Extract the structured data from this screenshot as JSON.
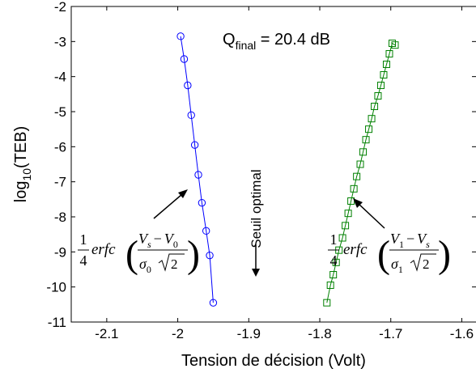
{
  "chart_data": {
    "type": "scatter",
    "title": "",
    "xlabel": "Tension de décision (Volt)",
    "ylabel_main": "log",
    "ylabel_sub": "10",
    "ylabel_paren": "(TEB)",
    "xlim": [
      -2.15,
      -1.58
    ],
    "ylim": [
      -11,
      -2
    ],
    "xticks": [
      -2.1,
      -2.0,
      -1.9,
      -1.8,
      -1.7,
      -1.6
    ],
    "xtick_labels": [
      "-2.1",
      "-2",
      "-1.9",
      "-1.8",
      "-1.7",
      "-1.6"
    ],
    "yticks": [
      -2,
      -3,
      -4,
      -5,
      -6,
      -7,
      -8,
      -9,
      -10,
      -11
    ],
    "ytick_labels": [
      "-2",
      "-3",
      "-4",
      "-5",
      "-6",
      "-7",
      "-8",
      "-9",
      "-10",
      "-11"
    ],
    "grid": false,
    "series": [
      {
        "color": "#0000ff",
        "marker": "circle",
        "x": [
          -1.996,
          -1.991,
          -1.986,
          -1.981,
          -1.976,
          -1.971,
          -1.966,
          -1.96,
          -1.955,
          -1.95
        ],
        "y": [
          -2.85,
          -3.5,
          -4.25,
          -5.1,
          -5.95,
          -6.8,
          -7.6,
          -8.4,
          -9.1,
          -10.45
        ]
      },
      {
        "color": "#008000",
        "marker": "square",
        "x": [
          -1.79,
          -1.785,
          -1.781,
          -1.777,
          -1.773,
          -1.768,
          -1.764,
          -1.76,
          -1.756,
          -1.752,
          -1.748,
          -1.743,
          -1.739,
          -1.735,
          -1.731,
          -1.727,
          -1.723,
          -1.718,
          -1.714,
          -1.71,
          -1.706,
          -1.702,
          -1.698,
          -1.694
        ],
        "y": [
          -10.45,
          -9.95,
          -9.65,
          -9.3,
          -8.95,
          -8.6,
          -8.25,
          -7.9,
          -7.55,
          -7.2,
          -6.85,
          -6.5,
          -6.15,
          -5.8,
          -5.5,
          -5.2,
          -4.85,
          -4.55,
          -4.25,
          -3.95,
          -3.65,
          -3.35,
          -3.05,
          -3.1
        ]
      }
    ],
    "annotations": {
      "qfinal_main": "Q",
      "qfinal_sub": "final",
      "qfinal_value": " = 20.4 dB",
      "seuil": "Seuil optimal",
      "formula_left": {
        "coef_num": "1",
        "coef_den": "4",
        "func": "erfc",
        "num_a": "V",
        "num_a_sub": "s",
        "minus": "−",
        "num_b": "V",
        "num_b_sub": "0",
        "den_sigma": "σ",
        "den_sigma_sub": "0",
        "den_sqrt_arg": "2"
      },
      "formula_right": {
        "coef_num": "1",
        "coef_den": "4",
        "func": "erfc",
        "num_a": "V",
        "num_a_sub": "1",
        "minus": "−",
        "num_b": "V",
        "num_b_sub": "s",
        "den_sigma": "σ",
        "den_sigma_sub": "1",
        "den_sqrt_arg": "2"
      }
    }
  }
}
